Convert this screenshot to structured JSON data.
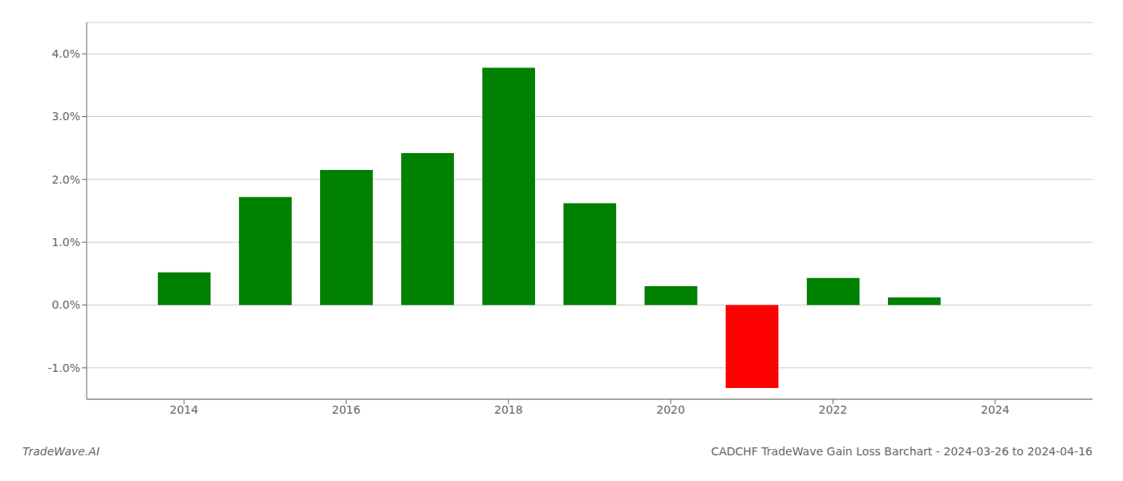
{
  "chart_data": {
    "type": "bar",
    "title": "CADCHF TradeWave Gain Loss Barchart - 2024-03-26 to 2024-04-16",
    "annotations": [
      "TradeWave.AI"
    ],
    "x": [
      2014,
      2015,
      2016,
      2017,
      2018,
      2019,
      2020,
      2021,
      2022,
      2023
    ],
    "values": [
      0.0052,
      0.0172,
      0.0215,
      0.0242,
      0.0378,
      0.0162,
      0.003,
      -0.0132,
      0.0043,
      0.0012
    ],
    "colors": [
      "#008000",
      "#008000",
      "#008000",
      "#008000",
      "#008000",
      "#008000",
      "#008000",
      "#ff0000",
      "#008000",
      "#008000"
    ],
    "xlim": [
      2012.8,
      2025.2
    ],
    "xticks": [
      2014,
      2016,
      2018,
      2020,
      2022,
      2024
    ],
    "ylim": [
      -0.015,
      0.045
    ],
    "yticks": [
      {
        "value": 0.04,
        "label": "4.0%"
      },
      {
        "value": 0.03,
        "label": "3.0%"
      },
      {
        "value": 0.02,
        "label": "2.0%"
      },
      {
        "value": 0.01,
        "label": "1.0%"
      },
      {
        "value": 0.0,
        "label": "0.0%"
      },
      {
        "value": -0.01,
        "label": "-1.0%"
      }
    ],
    "grid": true
  }
}
